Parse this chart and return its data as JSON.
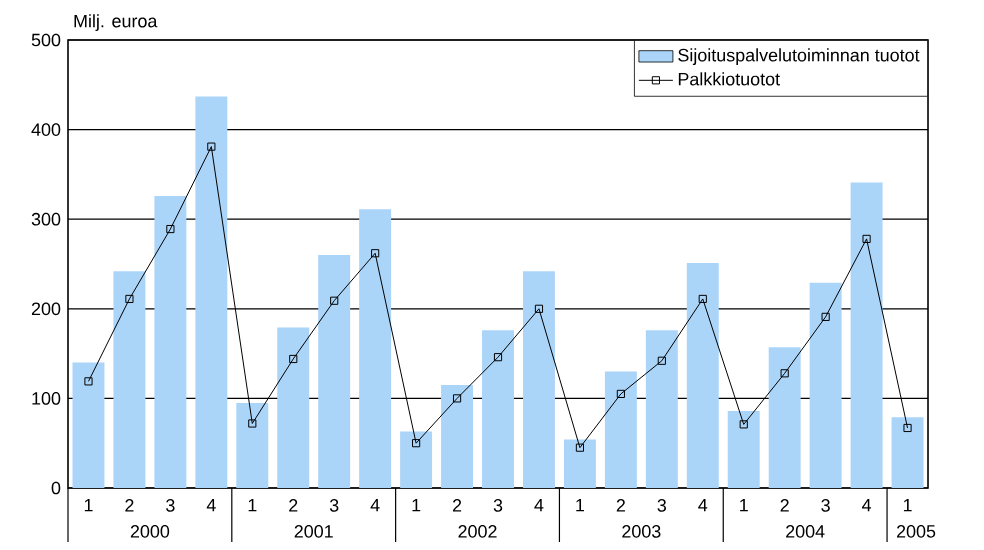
{
  "chart_data": {
    "type": "bar",
    "ylabel": "Milj. euroa",
    "categories": [
      "1",
      "2",
      "3",
      "4",
      "1",
      "2",
      "3",
      "4",
      "1",
      "2",
      "3",
      "4",
      "1",
      "2",
      "3",
      "4",
      "1",
      "2",
      "3",
      "4",
      "1"
    ],
    "series": [
      {
        "name": "Sijoituspalvelutoiminnan tuotot",
        "color": "#aad4f8",
        "values": [
          140,
          242,
          326,
          437,
          95,
          179,
          260,
          311,
          63,
          115,
          176,
          242,
          54,
          130,
          176,
          251,
          86,
          157,
          229,
          341,
          79
        ]
      },
      {
        "name": "Palkkiotuotot",
        "type": "line",
        "color": "#000000",
        "marker": "square",
        "values": [
          119,
          211,
          289,
          381,
          72,
          144,
          209,
          262,
          50,
          100,
          146,
          200,
          45,
          105,
          142,
          211,
          71,
          128,
          191,
          278,
          67
        ]
      }
    ],
    "annotations": [
      "2000",
      "2001",
      "2002",
      "2003",
      "2004",
      "2005"
    ],
    "ylim": [
      0,
      500
    ],
    "yticks": [
      0,
      100,
      200,
      300,
      400,
      500
    ],
    "grid": "y",
    "legend": "top right"
  }
}
